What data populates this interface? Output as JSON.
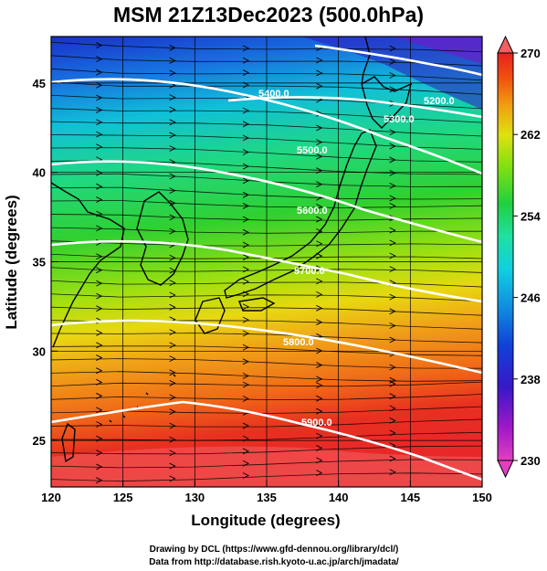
{
  "title": "MSM 21Z13Dec2023 (500.0hPa)",
  "x_axis": {
    "label": "Longitude (degrees)",
    "min": 120,
    "max": 150,
    "ticks": [
      "120",
      "125",
      "130",
      "135",
      "140",
      "145",
      "150"
    ]
  },
  "y_axis": {
    "label": "Latitude (degrees)",
    "min": 22.4,
    "max": 47.6,
    "ticks": [
      "25",
      "30",
      "35",
      "40",
      "45"
    ]
  },
  "colorbar": {
    "min": 230,
    "max": 270,
    "tick_labels": [
      "230",
      "238",
      "246",
      "254",
      "262",
      "270"
    ],
    "colors": [
      "#e040c0",
      "#8a10c8",
      "#2418c8",
      "#1060e0",
      "#10b0e0",
      "#20e0b0",
      "#20d050",
      "#80e010",
      "#e0e010",
      "#f0a010",
      "#f05010",
      "#e82020",
      "#f06060"
    ]
  },
  "contours": [
    {
      "label": "5200.0"
    },
    {
      "label": "5300.0"
    },
    {
      "label": "5400.0"
    },
    {
      "label": "5500.0"
    },
    {
      "label": "5600.0"
    },
    {
      "label": "5700.0"
    },
    {
      "label": "5800.0"
    },
    {
      "label": "5900.0"
    }
  ],
  "credits": {
    "line1": "Drawing by DCL (https://www.gfd-dennou.org/library/dcl/)",
    "line2": "Data from http://database.rish.kyoto-u.ac.jp/arch/jmadata/"
  }
}
